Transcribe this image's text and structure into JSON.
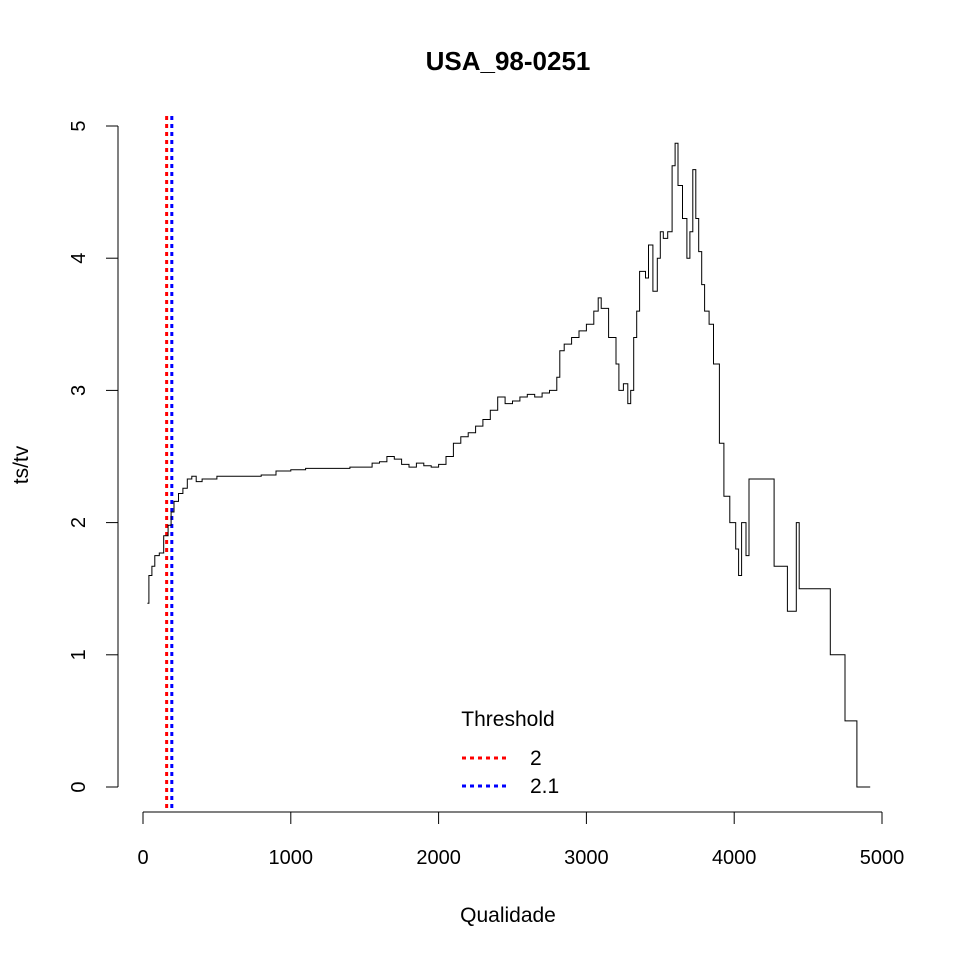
{
  "chart_data": {
    "type": "line",
    "title": "USA_98-0251",
    "xlabel": "Qualidade",
    "ylabel": "ts/tv",
    "xlim": [
      0,
      5000
    ],
    "ylim": [
      0,
      5
    ],
    "x_ticks": [
      "0",
      "1000",
      "2000",
      "3000",
      "4000",
      "5000"
    ],
    "y_ticks": [
      "0",
      "1",
      "2",
      "3",
      "4",
      "5"
    ],
    "grid": false,
    "series": [
      {
        "color": "#000000",
        "points": [
          [
            30,
            1.39
          ],
          [
            40,
            1.6
          ],
          [
            60,
            1.67
          ],
          [
            80,
            1.75
          ],
          [
            110,
            1.77
          ],
          [
            140,
            1.9
          ],
          [
            170,
            1.98
          ],
          [
            190,
            2.08
          ],
          [
            210,
            2.16
          ],
          [
            240,
            2.22
          ],
          [
            270,
            2.26
          ],
          [
            300,
            2.33
          ],
          [
            330,
            2.35
          ],
          [
            360,
            2.31
          ],
          [
            400,
            2.33
          ],
          [
            450,
            2.33
          ],
          [
            500,
            2.35
          ],
          [
            600,
            2.35
          ],
          [
            700,
            2.35
          ],
          [
            800,
            2.36
          ],
          [
            900,
            2.39
          ],
          [
            1000,
            2.4
          ],
          [
            1100,
            2.41
          ],
          [
            1200,
            2.41
          ],
          [
            1300,
            2.41
          ],
          [
            1400,
            2.42
          ],
          [
            1500,
            2.42
          ],
          [
            1550,
            2.45
          ],
          [
            1600,
            2.46
          ],
          [
            1650,
            2.5
          ],
          [
            1700,
            2.48
          ],
          [
            1750,
            2.44
          ],
          [
            1800,
            2.42
          ],
          [
            1850,
            2.45
          ],
          [
            1900,
            2.43
          ],
          [
            1950,
            2.42
          ],
          [
            2000,
            2.44
          ],
          [
            2050,
            2.5
          ],
          [
            2100,
            2.6
          ],
          [
            2150,
            2.65
          ],
          [
            2200,
            2.68
          ],
          [
            2250,
            2.73
          ],
          [
            2300,
            2.78
          ],
          [
            2350,
            2.85
          ],
          [
            2400,
            2.95
          ],
          [
            2450,
            2.9
          ],
          [
            2500,
            2.92
          ],
          [
            2550,
            2.95
          ],
          [
            2600,
            2.97
          ],
          [
            2650,
            2.95
          ],
          [
            2700,
            2.98
          ],
          [
            2750,
            3.0
          ],
          [
            2800,
            3.1
          ],
          [
            2820,
            3.3
          ],
          [
            2850,
            3.35
          ],
          [
            2900,
            3.4
          ],
          [
            2950,
            3.45
          ],
          [
            3000,
            3.5
          ],
          [
            3050,
            3.6
          ],
          [
            3080,
            3.7
          ],
          [
            3100,
            3.62
          ],
          [
            3150,
            3.4
          ],
          [
            3200,
            3.2
          ],
          [
            3220,
            3.0
          ],
          [
            3250,
            3.05
          ],
          [
            3280,
            2.9
          ],
          [
            3300,
            3.0
          ],
          [
            3320,
            3.4
          ],
          [
            3340,
            3.6
          ],
          [
            3360,
            3.9
          ],
          [
            3400,
            3.85
          ],
          [
            3420,
            4.1
          ],
          [
            3450,
            3.75
          ],
          [
            3480,
            4.0
          ],
          [
            3500,
            4.2
          ],
          [
            3520,
            4.15
          ],
          [
            3550,
            4.2
          ],
          [
            3580,
            4.7
          ],
          [
            3600,
            4.87
          ],
          [
            3620,
            4.55
          ],
          [
            3650,
            4.3
          ],
          [
            3680,
            4.0
          ],
          [
            3700,
            4.2
          ],
          [
            3720,
            4.67
          ],
          [
            3740,
            4.3
          ],
          [
            3760,
            4.05
          ],
          [
            3780,
            3.8
          ],
          [
            3800,
            3.6
          ],
          [
            3830,
            3.5
          ],
          [
            3860,
            3.2
          ],
          [
            3900,
            2.6
          ],
          [
            3930,
            2.2
          ],
          [
            3970,
            2.0
          ],
          [
            4010,
            1.8
          ],
          [
            4030,
            1.6
          ],
          [
            4050,
            2.0
          ],
          [
            4080,
            1.75
          ],
          [
            4100,
            2.33
          ],
          [
            4160,
            2.33
          ],
          [
            4200,
            2.33
          ],
          [
            4270,
            1.67
          ],
          [
            4320,
            1.67
          ],
          [
            4360,
            1.33
          ],
          [
            4400,
            1.33
          ],
          [
            4420,
            2.0
          ],
          [
            4440,
            1.5
          ],
          [
            4500,
            1.5
          ],
          [
            4600,
            1.5
          ],
          [
            4650,
            1.0
          ],
          [
            4700,
            1.0
          ],
          [
            4750,
            0.5
          ],
          [
            4800,
            0.5
          ],
          [
            4830,
            0.0
          ],
          [
            4920,
            0.0
          ]
        ]
      }
    ],
    "thresholds": [
      {
        "label": "2",
        "x": 160,
        "color": "#ff0000"
      },
      {
        "label": "2.1",
        "x": 195,
        "color": "#0000ff"
      }
    ],
    "legend": {
      "title": "Threshold",
      "position": "bottom-center"
    }
  }
}
